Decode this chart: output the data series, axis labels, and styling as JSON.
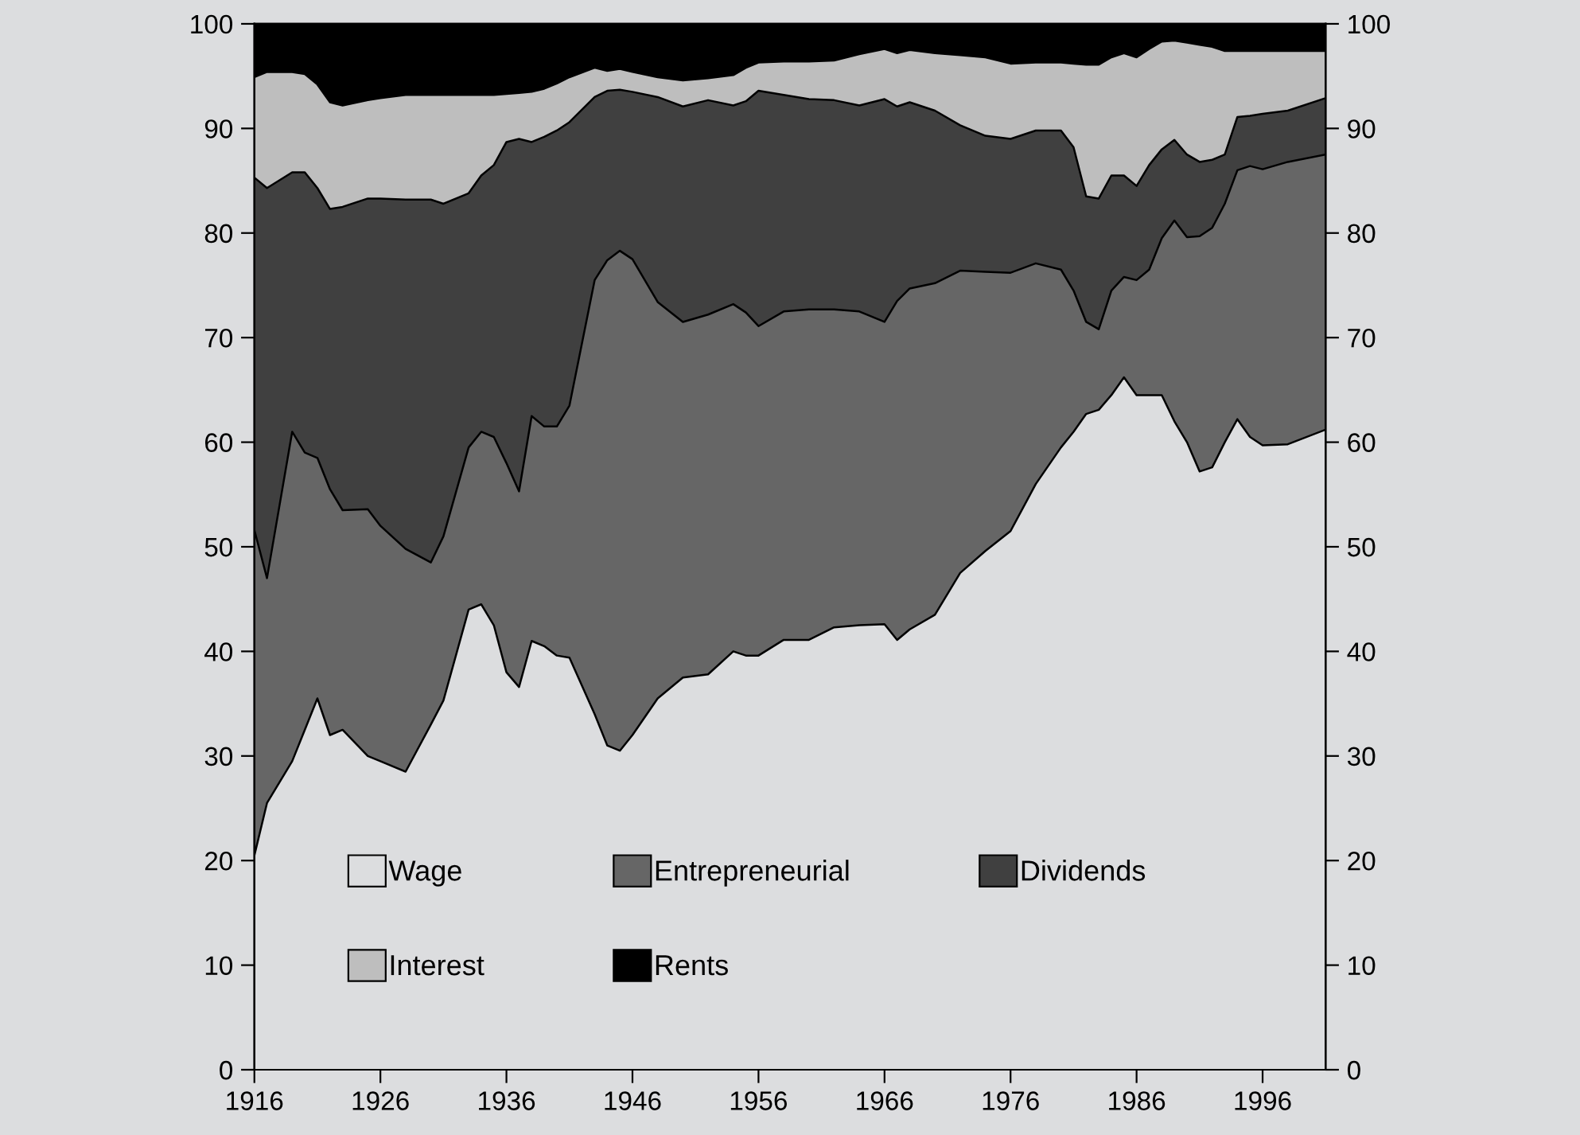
{
  "chart_data": {
    "type": "area",
    "stacked": true,
    "x": [
      1916,
      1917,
      1919,
      1920,
      1921,
      1922,
      1923,
      1925,
      1926,
      1928,
      1930,
      1931,
      1933,
      1934,
      1935,
      1936,
      1937,
      1938,
      1939,
      1940,
      1941,
      1943,
      1944,
      1945,
      1946,
      1948,
      1950,
      1952,
      1954,
      1955,
      1956,
      1958,
      1960,
      1962,
      1964,
      1966,
      1967,
      1968,
      1970,
      1972,
      1974,
      1976,
      1978,
      1980,
      1981,
      1982,
      1983,
      1984,
      1985,
      1986,
      1987,
      1988,
      1989,
      1990,
      1991,
      1992,
      1993,
      1994,
      1995,
      1996,
      1998,
      2001
    ],
    "series": [
      {
        "name": "Wage",
        "color": "#dcdddf",
        "values": [
          20.5,
          25.5,
          29.5,
          32.5,
          35.5,
          32,
          32.5,
          30,
          29.5,
          28.5,
          33,
          35.3,
          44,
          44.5,
          42.5,
          38,
          36.6,
          41,
          40.5,
          39.6,
          39.4,
          34,
          31,
          30.5,
          32,
          35.5,
          37.5,
          37.8,
          40,
          39.6,
          39.6,
          41.1,
          41.1,
          42.3,
          42.5,
          42.6,
          41.1,
          42.1,
          43.5,
          47.5,
          49.6,
          51.5,
          56,
          59.5,
          61,
          62.7,
          63.1,
          64.5,
          66.2,
          64.5,
          64.5,
          64.5,
          62,
          60,
          57.2,
          57.6,
          60,
          62.2,
          60.5,
          59.7,
          59.8,
          61.2
        ]
      },
      {
        "name": "Entrepreneurial",
        "color": "#666666",
        "values": [
          31.1,
          21.5,
          31.5,
          26.5,
          23,
          23.5,
          21,
          23.6,
          22.5,
          21.3,
          15.5,
          15.7,
          15.5,
          16.5,
          18,
          20,
          18.7,
          21.5,
          21,
          21.9,
          24.1,
          41.5,
          46.4,
          47.8,
          45.5,
          37.9,
          34,
          34.4,
          33.2,
          32.8,
          31.5,
          31.4,
          31.6,
          30.4,
          30,
          28.9,
          32.4,
          32.6,
          31.7,
          28.9,
          26.7,
          24.7,
          21.1,
          17,
          13.5,
          8.8,
          7.7,
          10,
          9.6,
          11,
          12,
          15,
          19.2,
          19.6,
          22.5,
          22.9,
          22.8,
          23.8,
          25.9,
          26.4,
          27,
          26.3
        ]
      },
      {
        "name": "Dividends",
        "color": "#404040",
        "values": [
          33.7,
          37.3,
          24.8,
          26.8,
          25.8,
          26.8,
          29,
          29.7,
          31.3,
          33.4,
          34.7,
          31.8,
          24.3,
          24.5,
          26,
          30.7,
          33.7,
          26.2,
          27.7,
          28.3,
          27.1,
          17.5,
          16.2,
          15.4,
          16,
          19.6,
          20.6,
          20.5,
          19,
          20.2,
          22.5,
          20.7,
          20.1,
          20,
          19.7,
          21.3,
          18.6,
          17.8,
          16.5,
          13.9,
          13,
          12.8,
          12.7,
          13.3,
          13.7,
          12,
          12.5,
          11,
          9.7,
          9,
          10,
          8.5,
          7.7,
          7.9,
          7.1,
          6.5,
          4.7,
          5.1,
          4.8,
          5.3,
          4.9,
          5.4
        ]
      },
      {
        "name": "Interest",
        "color": "#bebebe",
        "values": [
          9.6,
          11.1,
          9.6,
          9.4,
          9.9,
          10.2,
          9.7,
          9.4,
          9.6,
          10,
          10,
          10.4,
          9.4,
          7.7,
          6.7,
          4.6,
          4.4,
          4.8,
          4.6,
          4.5,
          4.3,
          2.8,
          1.9,
          2,
          1.9,
          1.9,
          2.5,
          2.1,
          2.9,
          3.2,
          2.7,
          3.2,
          3.6,
          3.8,
          4.9,
          4.8,
          5.1,
          5,
          5.5,
          6.7,
          7.5,
          7.2,
          6.5,
          6.5,
          8,
          12.6,
          12.8,
          11.3,
          11.7,
          12.3,
          11.1,
          10.3,
          9.5,
          10.7,
          11.2,
          10.8,
          9.9,
          6.3,
          6.2,
          6,
          5.7,
          4.5
        ]
      },
      {
        "name": "Rents",
        "color": "#000000",
        "values": [
          5.1,
          4.6,
          4.6,
          4.8,
          5.8,
          7.5,
          7.8,
          7.3,
          7.1,
          6.8,
          6.8,
          6.8,
          6.8,
          6.8,
          6.8,
          6.7,
          6.6,
          6.5,
          6.2,
          5.7,
          5.1,
          4.2,
          4.5,
          4.3,
          4.6,
          5.1,
          5.4,
          5.2,
          4.9,
          4.2,
          3.7,
          3.6,
          3.6,
          3.5,
          2.9,
          2.4,
          2.8,
          2.5,
          2.8,
          3,
          3.2,
          3.8,
          3.7,
          3.7,
          3.8,
          3.9,
          3.9,
          3.2,
          2.8,
          3.2,
          2.4,
          1.7,
          1.6,
          1.8,
          2,
          2.2,
          2.6,
          2.6,
          2.6,
          2.6,
          2.6,
          2.6
        ]
      }
    ],
    "xlim": [
      1916,
      2001
    ],
    "xticks": [
      1916,
      1926,
      1936,
      1946,
      1956,
      1966,
      1976,
      1986,
      1996
    ],
    "ylim": [
      0,
      100
    ],
    "yticks": [
      0,
      10,
      20,
      30,
      40,
      50,
      60,
      70,
      80,
      90,
      100
    ],
    "y2lim": [
      0,
      100
    ],
    "y2ticks": [
      0,
      10,
      20,
      30,
      40,
      50,
      60,
      70,
      80,
      90,
      100
    ],
    "grid": false,
    "legend": "bottom"
  }
}
